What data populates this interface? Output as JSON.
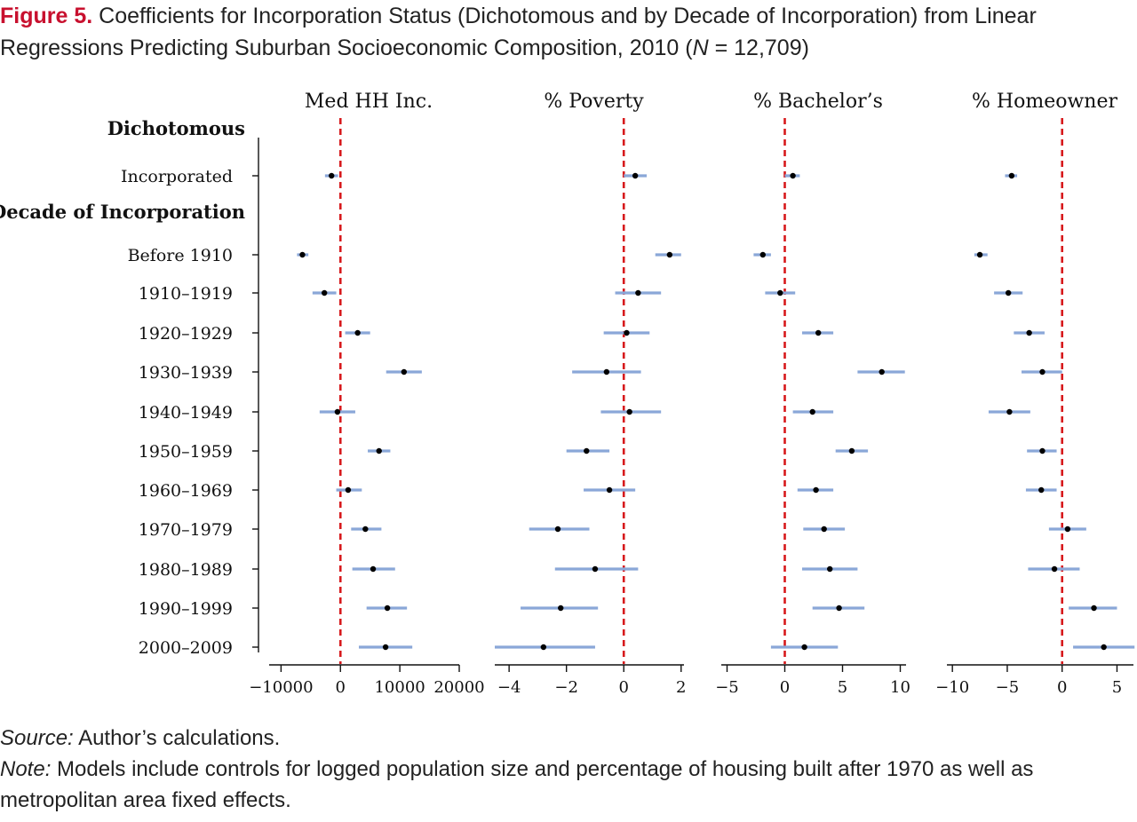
{
  "caption": {
    "label": "Figure 5.",
    "text_before_n": " Coefficients for Incorporation Status (Dichotomous and by Decade of Incorporation) from Linear Regressions Predicting Suburban Socioeconomic Composition, 2010 (",
    "n_symbol": "N",
    "text_after_n": " = 12,709)"
  },
  "footer": {
    "source_label": "Source:",
    "source_text": " Author’s calculations.",
    "note_label": "Note:",
    "note_text": " Models include controls for logged population size and percentage of housing built after 1970 as well as metropolitan area fixed effects."
  },
  "chart_data": {
    "type": "scatter",
    "subtype": "coefficient-plot",
    "reference_line": {
      "value": 0,
      "style": "dashed",
      "color": "#d7191c"
    },
    "colors": {
      "ci": "#8aa7d8",
      "point": "#000000"
    },
    "group_headings": [
      {
        "label": "Dichotomous",
        "before_row": "Incorporated"
      },
      {
        "label": "Decade of Incorporation",
        "before_row": "Before 1910"
      }
    ],
    "rows": [
      "Incorporated",
      "Before 1910",
      "1910–1919",
      "1920–1929",
      "1930–1939",
      "1940–1949",
      "1950–1959",
      "1960–1969",
      "1970–1979",
      "1980–1989",
      "1990–1999",
      "2000–2009"
    ],
    "panels": [
      {
        "title": "Med HH Inc.",
        "xlim": [
          -12000,
          20000
        ],
        "ticks": [
          -10000,
          0,
          10000,
          20000
        ],
        "tick_labels": [
          "−10000",
          "0",
          "10000",
          "20000"
        ],
        "estimates": [
          -1500,
          -6400,
          -2700,
          2900,
          10700,
          -500,
          6500,
          1300,
          4200,
          5500,
          7900,
          7600
        ],
        "ci_low": [
          -2600,
          -7300,
          -4700,
          800,
          7700,
          -3500,
          4600,
          -700,
          1800,
          2000,
          4400,
          3100
        ],
        "ci_high": [
          -400,
          -5400,
          -700,
          5000,
          13700,
          2500,
          8400,
          3600,
          6900,
          9200,
          11200,
          12100
        ]
      },
      {
        "title": "% Poverty",
        "xlim": [
          -4.5,
          2.1
        ],
        "ticks": [
          -4,
          -2,
          0,
          2
        ],
        "tick_labels": [
          "−4",
          "−2",
          "0",
          "2"
        ],
        "estimates": [
          0.4,
          1.6,
          0.5,
          0.1,
          -0.6,
          0.2,
          -1.3,
          -0.5,
          -2.3,
          -1.0,
          -2.2,
          -2.8
        ],
        "ci_low": [
          0.0,
          1.1,
          -0.3,
          -0.7,
          -1.8,
          -0.8,
          -2.0,
          -1.4,
          -3.3,
          -2.4,
          -3.6,
          -4.5
        ],
        "ci_high": [
          0.8,
          2.0,
          1.3,
          0.9,
          0.6,
          1.3,
          -0.5,
          0.4,
          -1.2,
          0.5,
          -0.9,
          -1.0
        ]
      },
      {
        "title": "% Bachelor’s",
        "xlim": [
          -5.5,
          10.5
        ],
        "ticks": [
          -5,
          0,
          5,
          10
        ],
        "tick_labels": [
          "−5",
          "0",
          "5",
          "10"
        ],
        "estimates": [
          0.7,
          -1.9,
          -0.4,
          2.9,
          8.4,
          2.4,
          5.8,
          2.7,
          3.4,
          3.9,
          4.7,
          1.7
        ],
        "ci_low": [
          0.0,
          -2.7,
          -1.7,
          1.5,
          6.3,
          0.7,
          4.4,
          1.1,
          1.6,
          1.5,
          2.4,
          -1.2
        ],
        "ci_high": [
          1.3,
          -1.2,
          0.9,
          4.2,
          10.4,
          4.2,
          7.2,
          4.2,
          5.2,
          6.3,
          6.9,
          4.6
        ]
      },
      {
        "title": "% Homeowner",
        "xlim": [
          -10.5,
          6.5
        ],
        "ticks": [
          -10,
          -5,
          0,
          5
        ],
        "tick_labels": [
          "−10",
          "−5",
          "0",
          "5"
        ],
        "estimates": [
          -4.6,
          -7.5,
          -4.9,
          -3.0,
          -1.8,
          -4.8,
          -1.8,
          -1.9,
          0.5,
          -0.7,
          2.9,
          3.8
        ],
        "ci_low": [
          -5.2,
          -8.0,
          -6.2,
          -4.4,
          -3.7,
          -6.7,
          -3.2,
          -3.3,
          -1.2,
          -3.1,
          0.6,
          1.0
        ],
        "ci_high": [
          -4.1,
          -6.8,
          -3.6,
          -1.6,
          0.0,
          -2.9,
          -0.5,
          -0.5,
          2.2,
          1.6,
          5.0,
          6.6
        ]
      }
    ]
  }
}
